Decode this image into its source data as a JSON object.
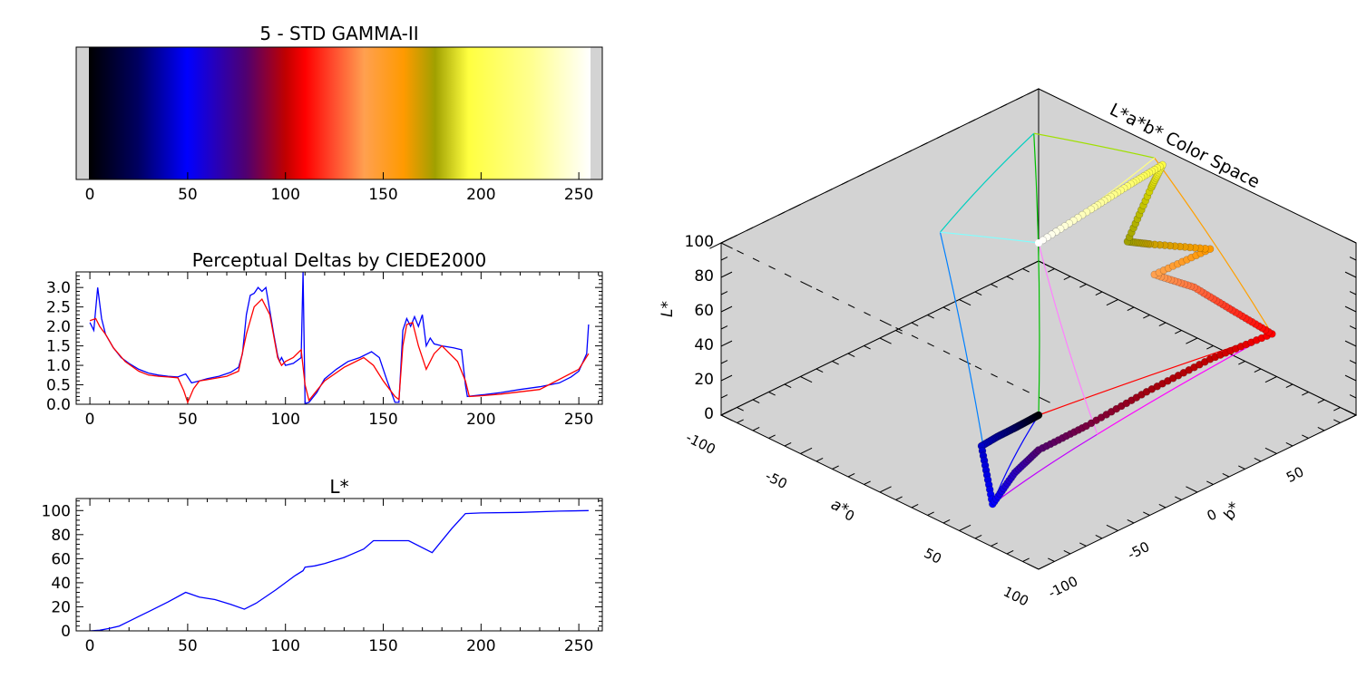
{
  "chart_data": [
    {
      "type": "colorbar",
      "title": "5 - STD GAMMA-II",
      "xlim": [
        -7,
        262
      ],
      "xticks": [
        "0",
        "50",
        "100",
        "150",
        "200",
        "250"
      ],
      "color_stops": [
        {
          "x": 0,
          "color": "#000000"
        },
        {
          "x": 25,
          "color": "#000060"
        },
        {
          "x": 50,
          "color": "#0000ff"
        },
        {
          "x": 80,
          "color": "#500070"
        },
        {
          "x": 100,
          "color": "#c00000"
        },
        {
          "x": 110,
          "color": "#ff0000"
        },
        {
          "x": 125,
          "color": "#ff5030"
        },
        {
          "x": 140,
          "color": "#ffa050"
        },
        {
          "x": 160,
          "color": "#ff9a00"
        },
        {
          "x": 176,
          "color": "#a0a000"
        },
        {
          "x": 193,
          "color": "#ffff40"
        },
        {
          "x": 225,
          "color": "#ffff90"
        },
        {
          "x": 255,
          "color": "#ffffff"
        }
      ]
    },
    {
      "type": "line",
      "title": "Perceptual Deltas by CIEDE2000",
      "xlim": [
        -7,
        262
      ],
      "ylim": [
        0,
        3.4
      ],
      "xticks": [
        "0",
        "50",
        "100",
        "150",
        "200",
        "250"
      ],
      "yticks": [
        "0.0",
        "0.5",
        "1.0",
        "1.5",
        "2.0",
        "2.5",
        "3.0"
      ],
      "series": [
        {
          "color": "#0000ff",
          "x": [
            0,
            2,
            4,
            6,
            8,
            12,
            16,
            20,
            25,
            30,
            35,
            40,
            45,
            49,
            52,
            56,
            60,
            66,
            72,
            76,
            78,
            80,
            82,
            84,
            86,
            88,
            90,
            92,
            94,
            96,
            97,
            98,
            100,
            104,
            108,
            109,
            110,
            112,
            116,
            120,
            126,
            132,
            138,
            144,
            148,
            152,
            156,
            158,
            160,
            162,
            164,
            166,
            168,
            170,
            172,
            174,
            176,
            180,
            186,
            190,
            192,
            193,
            196,
            202,
            210,
            220,
            230,
            240,
            246,
            250,
            254,
            255
          ],
          "y": [
            2.1,
            1.9,
            3.0,
            2.2,
            1.8,
            1.45,
            1.2,
            1.05,
            0.9,
            0.8,
            0.75,
            0.72,
            0.7,
            0.78,
            0.55,
            0.6,
            0.66,
            0.72,
            0.82,
            0.95,
            1.3,
            2.3,
            2.8,
            2.85,
            3.0,
            2.9,
            3.0,
            2.4,
            1.8,
            1.25,
            1.1,
            1.2,
            1.0,
            1.05,
            1.2,
            3.4,
            0.02,
            0.05,
            0.3,
            0.65,
            0.9,
            1.1,
            1.2,
            1.35,
            1.2,
            0.6,
            0.05,
            0.05,
            1.9,
            2.2,
            2.0,
            2.25,
            2.0,
            2.3,
            1.5,
            1.7,
            1.55,
            1.5,
            1.45,
            1.4,
            0.5,
            0.2,
            0.22,
            0.25,
            0.3,
            0.38,
            0.45,
            0.55,
            0.7,
            0.85,
            1.3,
            2.05
          ]
        },
        {
          "color": "#ff0000",
          "x": [
            0,
            3,
            5,
            8,
            12,
            18,
            25,
            30,
            35,
            40,
            45,
            48,
            50,
            53,
            56,
            60,
            70,
            76,
            80,
            84,
            88,
            92,
            96,
            98,
            100,
            104,
            108,
            110,
            112,
            120,
            130,
            140,
            145,
            150,
            156,
            158,
            160,
            162,
            165,
            168,
            172,
            176,
            180,
            184,
            188,
            192,
            194,
            200,
            210,
            230,
            250,
            255
          ],
          "y": [
            2.15,
            2.2,
            2.0,
            1.8,
            1.45,
            1.1,
            0.85,
            0.75,
            0.72,
            0.7,
            0.68,
            0.35,
            0.05,
            0.4,
            0.6,
            0.63,
            0.72,
            0.85,
            1.8,
            2.5,
            2.7,
            2.3,
            1.2,
            1.0,
            1.1,
            1.2,
            1.4,
            0.5,
            0.1,
            0.6,
            0.95,
            1.2,
            1.0,
            0.6,
            0.2,
            0.12,
            1.5,
            2.05,
            2.1,
            1.5,
            0.9,
            1.3,
            1.5,
            1.3,
            1.1,
            0.6,
            0.2,
            0.22,
            0.26,
            0.38,
            0.9,
            1.3
          ]
        }
      ]
    },
    {
      "type": "line",
      "title": "L*",
      "xlim": [
        -7,
        262
      ],
      "ylim": [
        0,
        110
      ],
      "xticks": [
        "0",
        "50",
        "100",
        "150",
        "200",
        "250"
      ],
      "yticks": [
        "0",
        "20",
        "40",
        "60",
        "80",
        "100"
      ],
      "series": [
        {
          "color": "#0000ff",
          "x": [
            0,
            5,
            10,
            15,
            20,
            25,
            30,
            40,
            49,
            56,
            64,
            72,
            79,
            85,
            95,
            105,
            109,
            110,
            115,
            120,
            130,
            140,
            145,
            150,
            163,
            175,
            185,
            192,
            200,
            220,
            240,
            255
          ],
          "y": [
            0,
            0.5,
            2,
            4,
            8,
            12,
            16,
            24,
            32,
            28,
            26,
            22,
            18,
            23,
            34,
            46,
            50,
            53,
            54,
            56,
            61,
            68,
            75,
            75,
            75,
            65,
            85,
            97.5,
            98,
            98.5,
            99.5,
            100
          ]
        }
      ]
    },
    {
      "type": "scatter3d",
      "title": "L*a*b* Color Space",
      "xlabel": "a*",
      "ylabel": "b*",
      "zlabel": "L*",
      "a_ticks": [
        "-100",
        "-50",
        "0",
        "50",
        "100"
      ],
      "b_ticks": [
        "-100",
        "-50",
        "0",
        "50"
      ],
      "l_ticks": [
        "0",
        "20",
        "40",
        "60",
        "80",
        "100"
      ],
      "a_range": [
        -100,
        100
      ],
      "b_range": [
        -100,
        100
      ],
      "l_range": [
        0,
        100
      ],
      "points": [
        {
          "a": 0,
          "b": 0,
          "L": 0,
          "color": "#000000"
        },
        {
          "a": 5,
          "b": -14,
          "L": 4,
          "color": "#000030"
        },
        {
          "a": 12,
          "b": -28,
          "L": 10,
          "color": "#000060"
        },
        {
          "a": 20,
          "b": -46,
          "L": 17,
          "color": "#000090"
        },
        {
          "a": 30,
          "b": -66,
          "L": 25,
          "color": "#0000c8"
        },
        {
          "a": 79,
          "b": -108,
          "L": 32,
          "color": "#0000ff"
        },
        {
          "a": 60,
          "b": -75,
          "L": 27,
          "color": "#2a00c0"
        },
        {
          "a": 45,
          "b": -45,
          "L": 20,
          "color": "#500070"
        },
        {
          "a": 50,
          "b": -20,
          "L": 25,
          "color": "#780040"
        },
        {
          "a": 58,
          "b": 10,
          "L": 35,
          "color": "#a00010"
        },
        {
          "a": 68,
          "b": 40,
          "L": 45,
          "color": "#c00000"
        },
        {
          "a": 80,
          "b": 67,
          "L": 53,
          "color": "#ff0000"
        },
        {
          "a": 60,
          "b": 62,
          "L": 60,
          "color": "#ff3020"
        },
        {
          "a": 42,
          "b": 56,
          "L": 68,
          "color": "#ff7040"
        },
        {
          "a": 28,
          "b": 45,
          "L": 74,
          "color": "#ffa050"
        },
        {
          "a": 30,
          "b": 78,
          "L": 75,
          "color": "#ff9a00"
        },
        {
          "a": 0,
          "b": 70,
          "L": 68,
          "color": "#c8a000"
        },
        {
          "a": -12,
          "b": 68,
          "L": 65,
          "color": "#a0a000"
        },
        {
          "a": -14,
          "b": 85,
          "L": 88,
          "color": "#d4d400"
        },
        {
          "a": -15,
          "b": 93,
          "L": 97,
          "color": "#ffff40"
        },
        {
          "a": -12,
          "b": 70,
          "L": 97.5,
          "color": "#ffff70"
        },
        {
          "a": -7,
          "b": 40,
          "L": 98.5,
          "color": "#ffffb0"
        },
        {
          "a": 0,
          "b": 0,
          "L": 100,
          "color": "#ffffff"
        }
      ]
    }
  ]
}
